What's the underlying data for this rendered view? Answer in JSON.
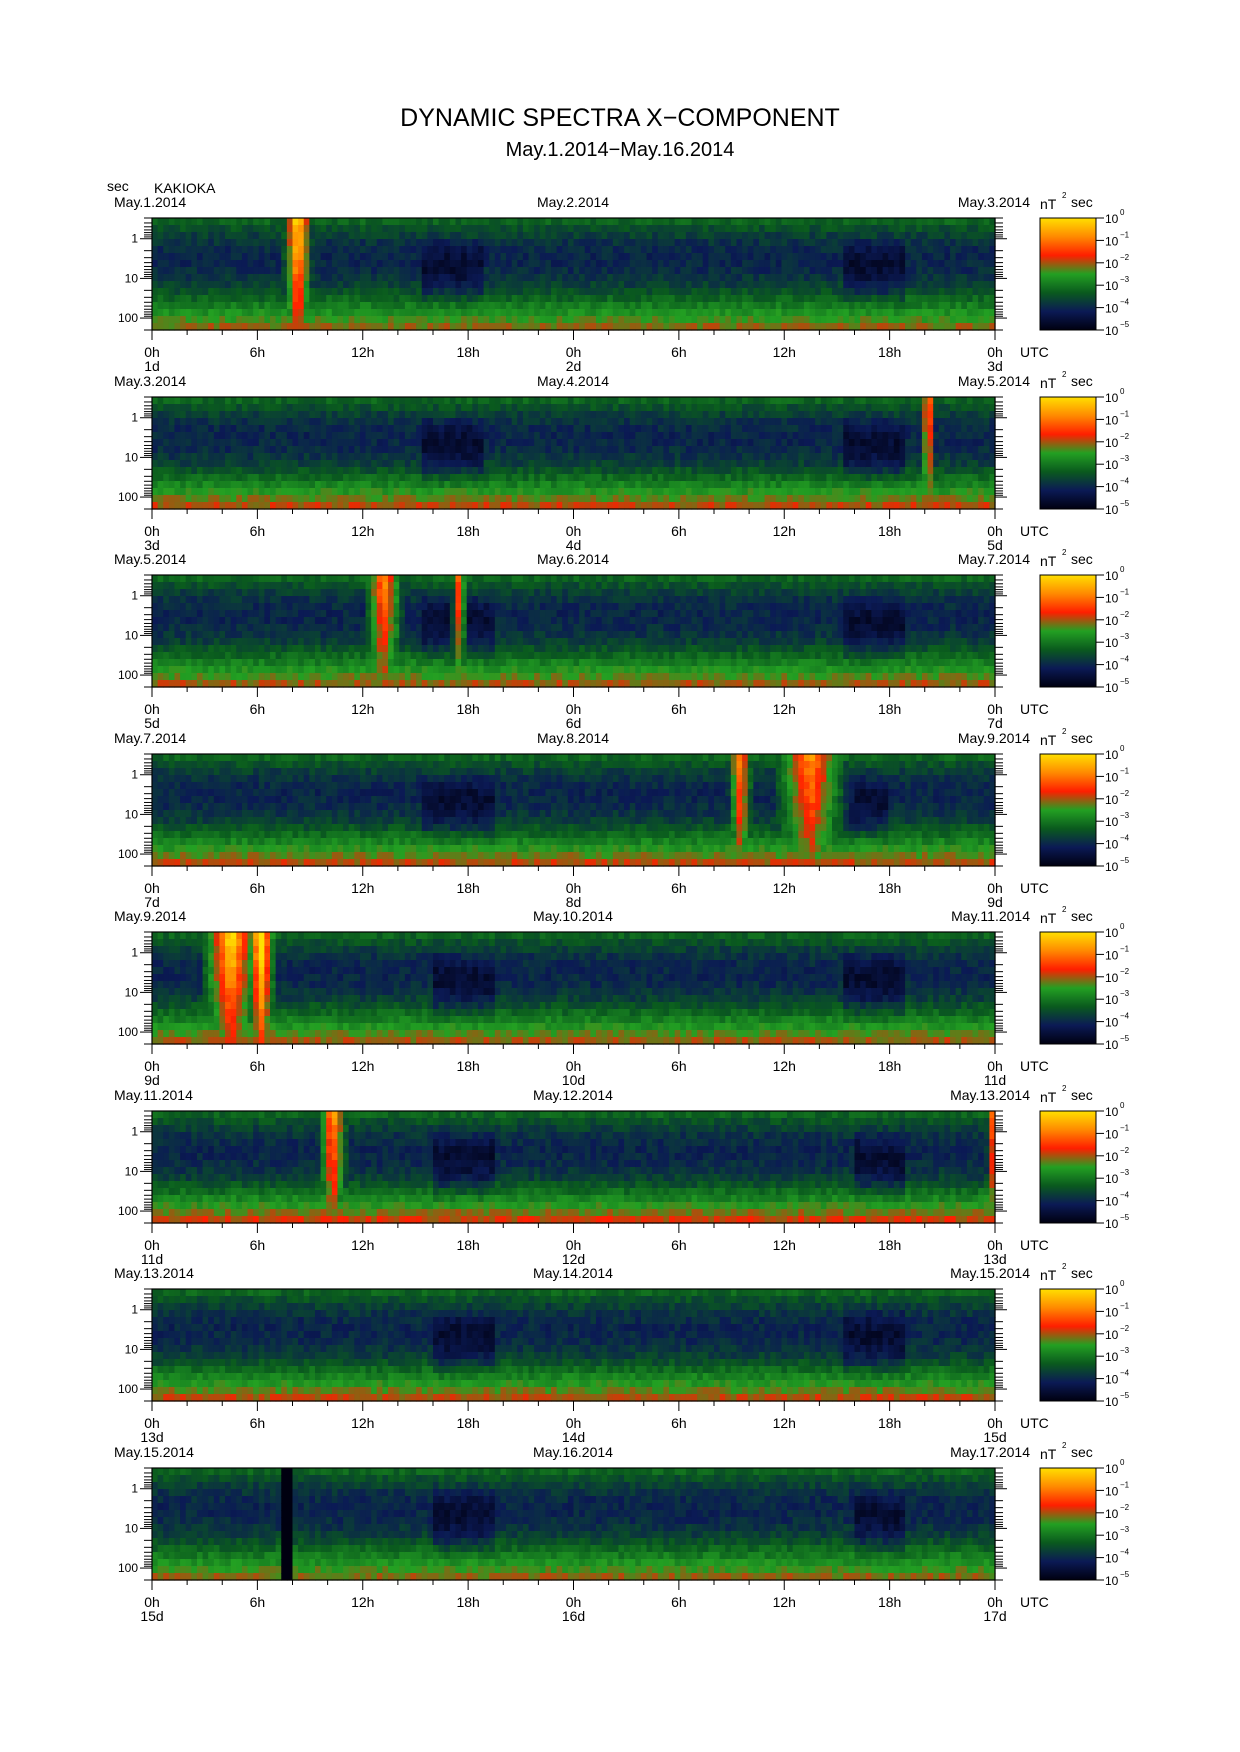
{
  "figure": {
    "title": "DYNAMIC SPECTRA X−COMPONENT",
    "subtitle": "May.1.2014−May.16.2014",
    "yunit": "sec",
    "station": "KAKIOKA",
    "x_unit": "UTC",
    "colorbar_unit": "nT",
    "colorbar_unit_exp": "2",
    "colorbar_unit_suffix": "sec",
    "colorbar_ticks": [
      {
        "base": "10",
        "exp": "0"
      },
      {
        "base": "10",
        "exp": "−1"
      },
      {
        "base": "10",
        "exp": "−2"
      },
      {
        "base": "10",
        "exp": "−3"
      },
      {
        "base": "10",
        "exp": "−4"
      },
      {
        "base": "10",
        "exp": "−5"
      }
    ],
    "colormap": [
      "#000010",
      "#0b1a55",
      "#0a5a1e",
      "#23a022",
      "#ff1e00",
      "#ff8a00",
      "#ffe000"
    ]
  },
  "chart_data": {
    "type": "heatmap",
    "x_tick_labels": [
      "0h",
      "6h",
      "12h",
      "18h",
      "0h",
      "6h",
      "12h",
      "18h",
      "0h"
    ],
    "y_tick_labels": [
      "1",
      "10",
      "100"
    ],
    "y_values": [
      1,
      10,
      100
    ],
    "ylabel": "sec",
    "xlabel": "UTC",
    "yscale": "log",
    "ylim": [
      0.3,
      200
    ],
    "clim": [
      1e-05,
      1
    ],
    "colorbar_scale": "log",
    "panels": [
      {
        "date_left": "May.1.2014",
        "date_mid": "May.2.2014",
        "date_right": "May.3.2014",
        "day_labels": [
          "1d",
          "2d",
          "3d"
        ],
        "background_intensity": 0.25,
        "events": [
          {
            "time_h": 8.3,
            "width_h": 0.6,
            "peak": 0.95
          },
          {
            "time_h": 8.6,
            "width_h": 0.2,
            "peak": 0.9
          }
        ],
        "quiet_intervals_h": [
          [
            15.5,
            19
          ],
          [
            39.5,
            43
          ]
        ]
      },
      {
        "date_left": "May.3.2014",
        "date_mid": "May.4.2014",
        "date_right": "May.5.2014",
        "day_labels": [
          "3d",
          "4d",
          "5d"
        ],
        "background_intensity": 0.35,
        "events": [
          {
            "time_h": 44.2,
            "width_h": 0.3,
            "peak": 0.8
          }
        ],
        "quiet_intervals_h": [
          [
            15.5,
            19
          ],
          [
            39.5,
            43
          ]
        ]
      },
      {
        "date_left": "May.5.2014",
        "date_mid": "May.6.2014",
        "date_right": "May.7.2014",
        "day_labels": [
          "5d",
          "6d",
          "7d"
        ],
        "background_intensity": 0.3,
        "events": [
          {
            "time_h": 13.2,
            "width_h": 0.8,
            "peak": 0.75
          },
          {
            "time_h": 17.5,
            "width_h": 0.3,
            "peak": 0.7
          }
        ],
        "quiet_intervals_h": [
          [
            15.5,
            19.5
          ],
          [
            39.5,
            43
          ]
        ]
      },
      {
        "date_left": "May.7.2014",
        "date_mid": "May.8.2014",
        "date_right": "May.9.2014",
        "day_labels": [
          "7d",
          "8d",
          "9d"
        ],
        "background_intensity": 0.35,
        "events": [
          {
            "time_h": 33.5,
            "width_h": 0.5,
            "peak": 0.75
          },
          {
            "time_h": 37.5,
            "width_h": 1.5,
            "peak": 0.75
          }
        ],
        "quiet_intervals_h": [
          [
            15.5,
            19.5
          ],
          [
            39.5,
            42
          ]
        ]
      },
      {
        "date_left": "May.9.2014",
        "date_mid": "May.10.2014",
        "date_right": "May.11.2014",
        "day_labels": [
          "9d",
          "10d",
          "11d"
        ],
        "background_intensity": 0.3,
        "events": [
          {
            "time_h": 4.5,
            "width_h": 1.2,
            "peak": 0.9
          },
          {
            "time_h": 6.2,
            "width_h": 0.6,
            "peak": 1.0
          }
        ],
        "quiet_intervals_h": [
          [
            16,
            19.5
          ],
          [
            39.5,
            43
          ]
        ]
      },
      {
        "date_left": "May.11.2014",
        "date_mid": "May.12.2014",
        "date_right": "May.13.2014",
        "day_labels": [
          "11d",
          "12d",
          "13d"
        ],
        "background_intensity": 0.4,
        "events": [
          {
            "time_h": 10.3,
            "width_h": 0.6,
            "peak": 0.8
          },
          {
            "time_h": 47.8,
            "width_h": 0.2,
            "peak": 0.7
          }
        ],
        "quiet_intervals_h": [
          [
            16,
            19.5
          ],
          [
            40,
            43
          ]
        ]
      },
      {
        "date_left": "May.13.2014",
        "date_mid": "May.14.2014",
        "date_right": "May.15.2014",
        "day_labels": [
          "13d",
          "14d",
          "15d"
        ],
        "background_intensity": 0.35,
        "events": [],
        "quiet_intervals_h": [
          [
            16,
            19.5
          ],
          [
            39.5,
            43
          ]
        ]
      },
      {
        "date_left": "May.15.2014",
        "date_mid": "May.16.2014",
        "date_right": "May.17.2014",
        "day_labels": [
          "15d",
          "16d",
          "17d"
        ],
        "background_intensity": 0.25,
        "events": [],
        "quiet_intervals_h": [
          [
            16,
            19.5
          ],
          [
            40,
            43
          ]
        ],
        "data_gaps_h": [
          [
            7.2,
            7.9
          ]
        ]
      }
    ]
  }
}
